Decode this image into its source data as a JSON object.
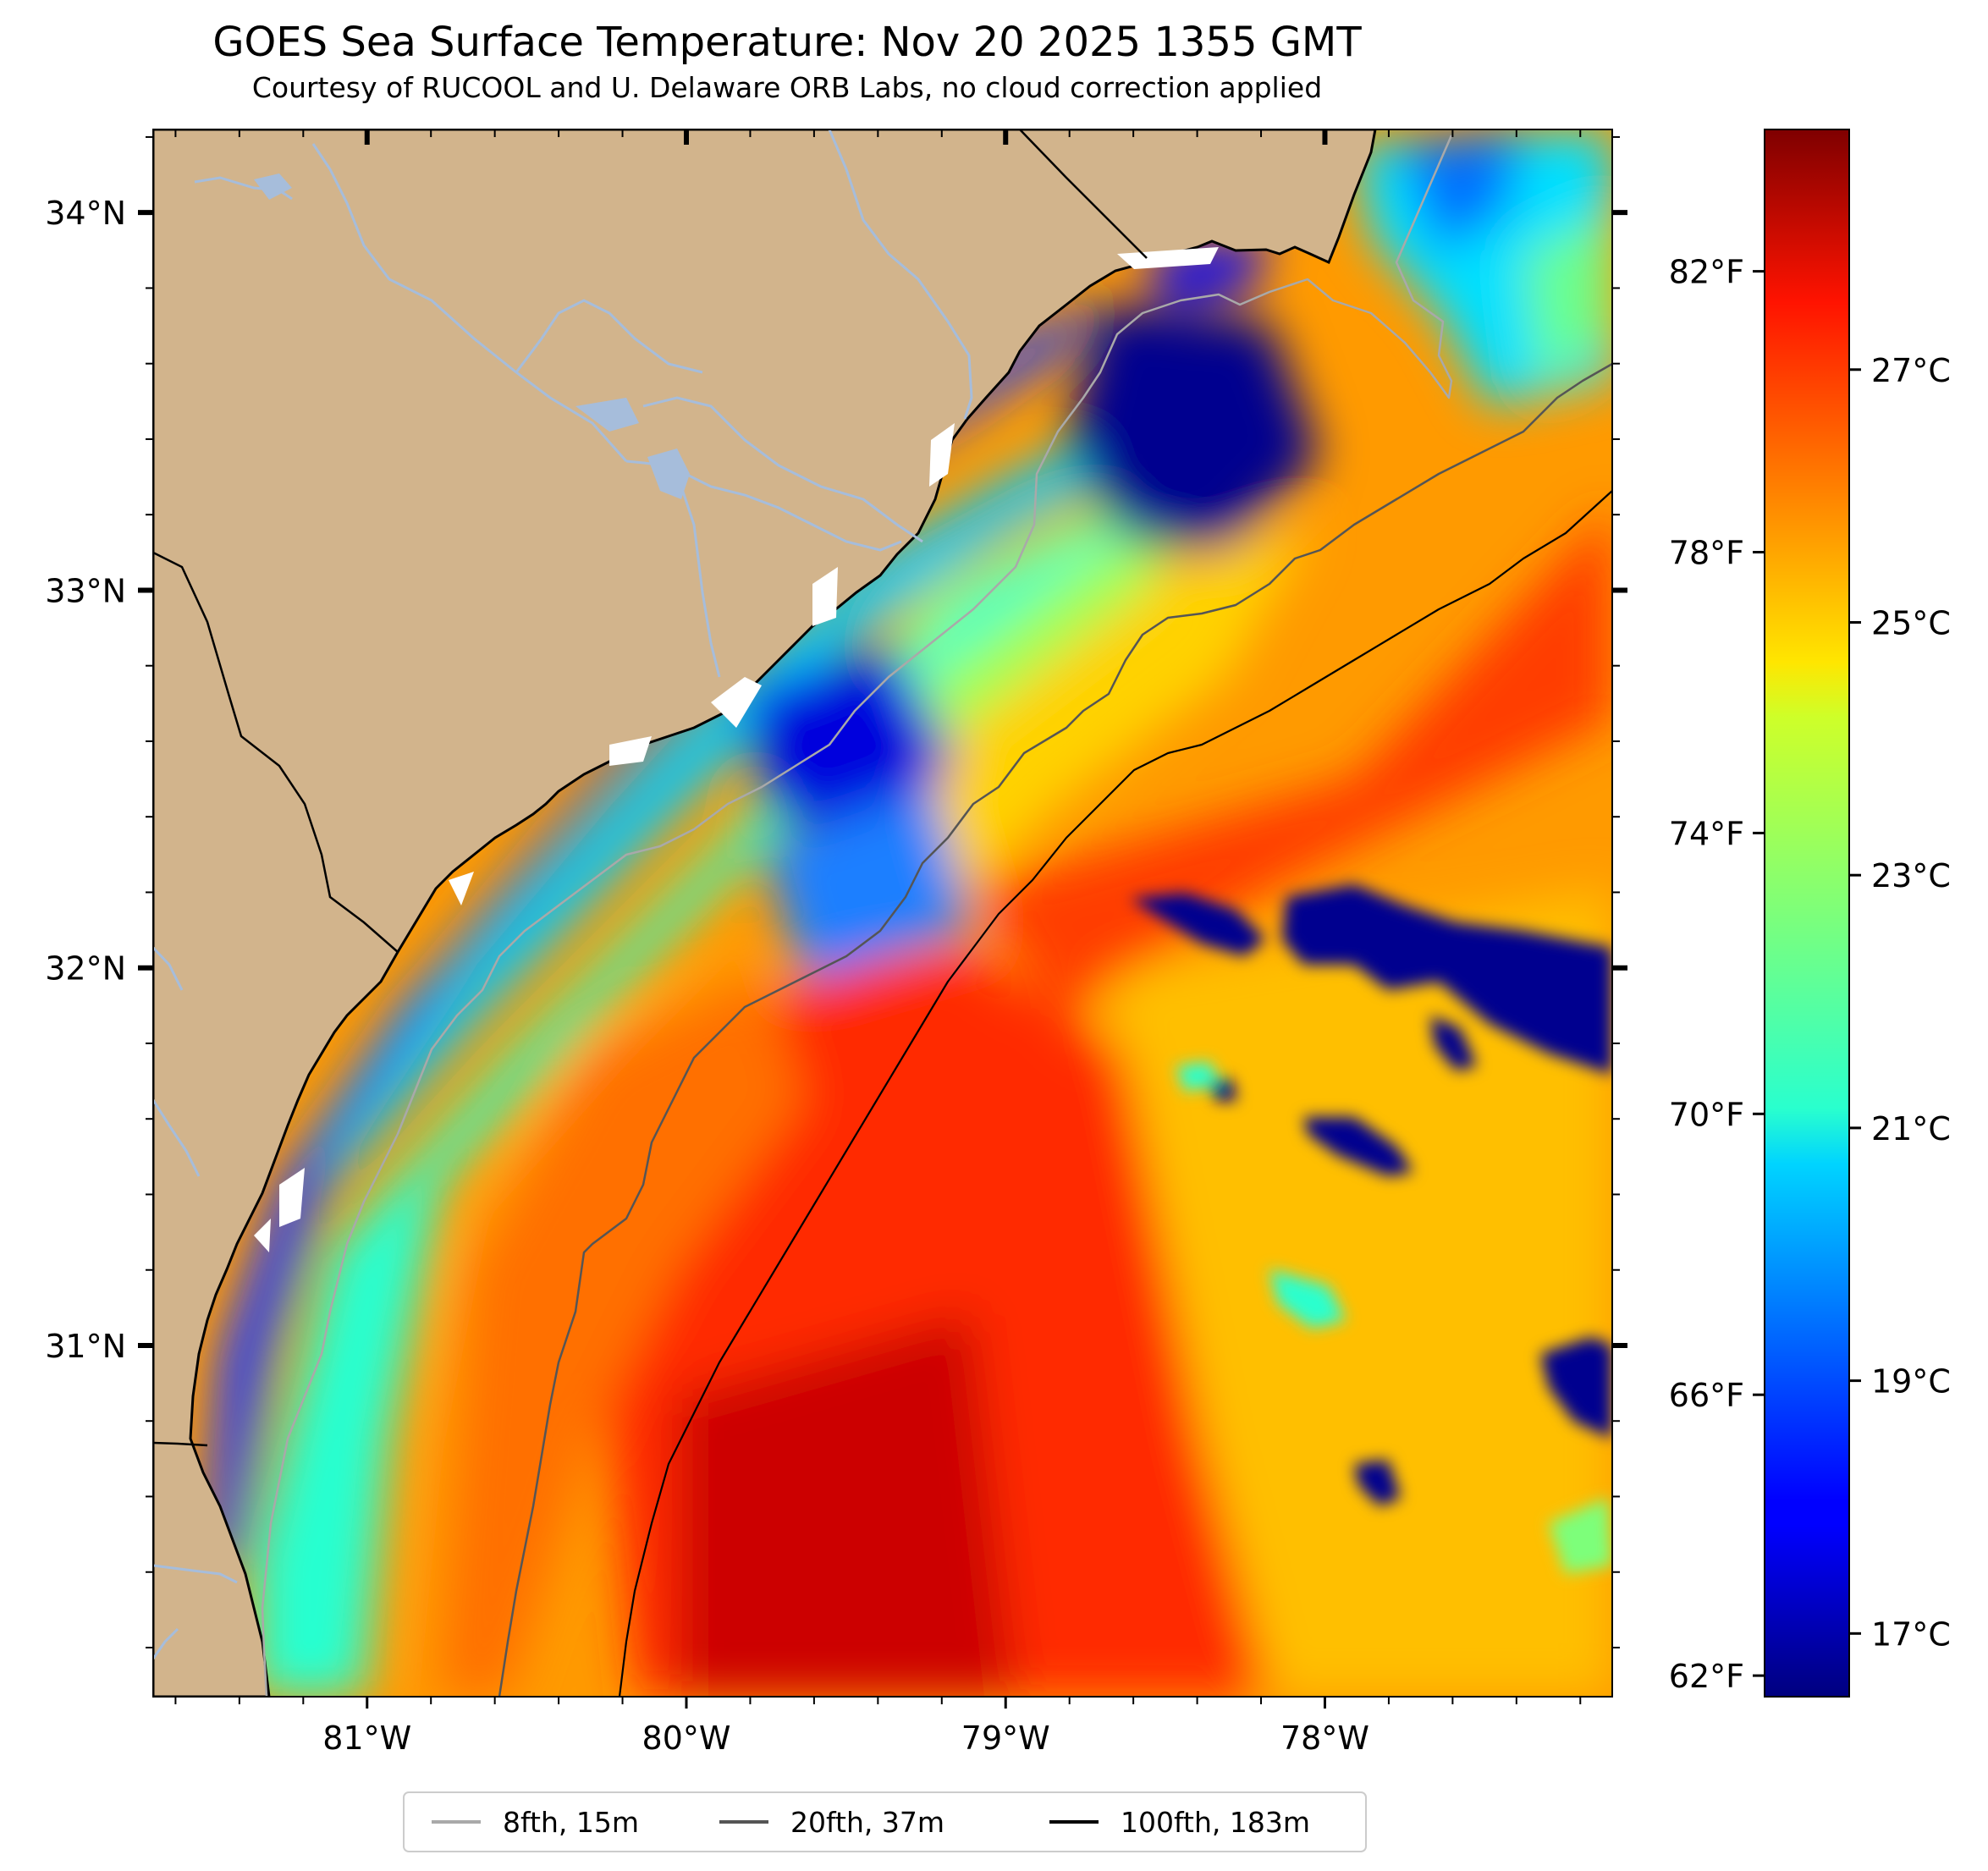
{
  "title": "GOES Sea Surface Temperature: Nov 20 2025 1355 GMT",
  "subtitle": "Courtesy of RUCOOL and U. Delaware ORB Labs, no cloud correction applied",
  "map": {
    "lon_range": [
      -81.67,
      -77.1
    ],
    "lat_range": [
      30.07,
      34.22
    ],
    "lon_ticks": [
      {
        "value": -81,
        "label": "81°W"
      },
      {
        "value": -80,
        "label": "80°W"
      },
      {
        "value": -79,
        "label": "79°W"
      },
      {
        "value": -78,
        "label": "78°W"
      }
    ],
    "lat_ticks": [
      {
        "value": 34,
        "label": "34°N"
      },
      {
        "value": 33,
        "label": "33°N"
      },
      {
        "value": 32,
        "label": "32°N"
      },
      {
        "value": 31,
        "label": "31°N"
      }
    ],
    "colors": {
      "land": "#d2b48c",
      "water": "#a6bddb",
      "coast": "#000000",
      "cloud": "#ffffff"
    }
  },
  "colorbar": {
    "range_c": [
      16.5,
      28.9
    ],
    "celsius_ticks": [
      {
        "value": 17,
        "label": "17°C"
      },
      {
        "value": 19,
        "label": "19°C"
      },
      {
        "value": 21,
        "label": "21°C"
      },
      {
        "value": 23,
        "label": "23°C"
      },
      {
        "value": 25,
        "label": "25°C"
      },
      {
        "value": 27,
        "label": "27°C"
      }
    ],
    "fahrenheit_ticks": [
      {
        "value": 62,
        "label": "62°F"
      },
      {
        "value": 66,
        "label": "66°F"
      },
      {
        "value": 70,
        "label": "70°F"
      },
      {
        "value": 74,
        "label": "74°F"
      },
      {
        "value": 78,
        "label": "78°F"
      },
      {
        "value": 82,
        "label": "82°F"
      }
    ],
    "colormap": "jet"
  },
  "legend": {
    "position": "bottom-center",
    "items": [
      {
        "label": "8fth, 15m",
        "color": "#a9a9a9"
      },
      {
        "label": "20fth, 37m",
        "color": "#555555"
      },
      {
        "label": "100fth, 183m",
        "color": "#000000"
      }
    ]
  }
}
